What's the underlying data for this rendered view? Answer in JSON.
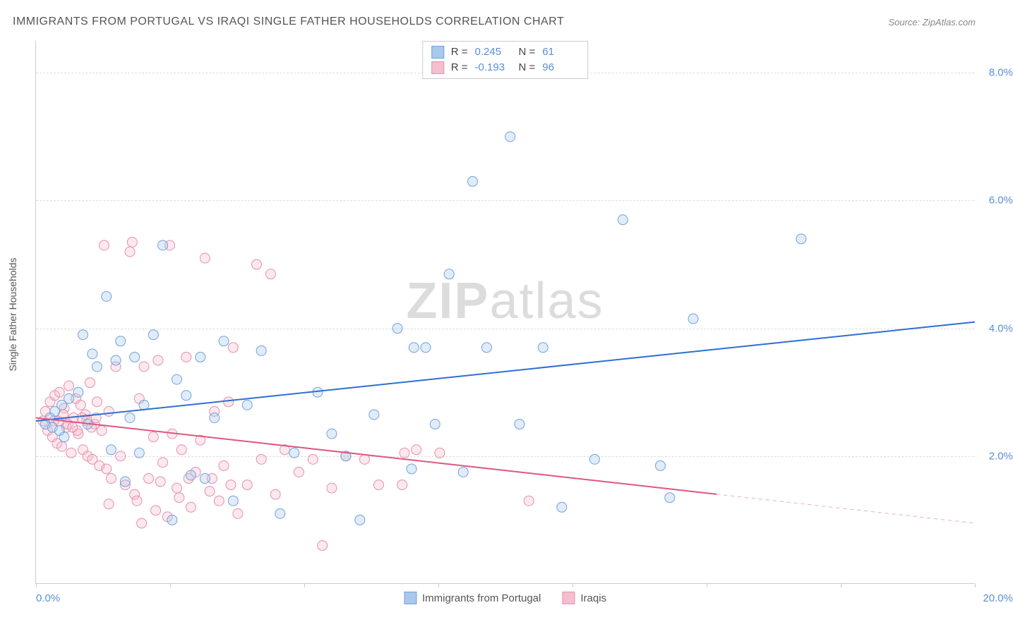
{
  "title": "IMMIGRANTS FROM PORTUGAL VS IRAQI SINGLE FATHER HOUSEHOLDS CORRELATION CHART",
  "source": "Source: ZipAtlas.com",
  "watermark_a": "ZIP",
  "watermark_b": "atlas",
  "ylabel": "Single Father Households",
  "chart": {
    "type": "scatter",
    "xlim": [
      0,
      20
    ],
    "ylim": [
      0,
      8.5
    ],
    "x_ticks_labels": {
      "0": "0.0%",
      "20": "20.0%"
    },
    "x_tick_positions": [
      0,
      2.86,
      5.71,
      8.57,
      11.43,
      14.29,
      17.14,
      20
    ],
    "y_ticks": [
      2,
      4,
      6,
      8
    ],
    "y_tick_labels": [
      "2.0%",
      "4.0%",
      "6.0%",
      "8.0%"
    ],
    "background_color": "#ffffff",
    "grid_color": "#dddddd",
    "axis_color": "#cccccc",
    "tick_label_color": "#5a8fd6",
    "text_color": "#555555",
    "marker_radius": 7,
    "marker_stroke_width": 1,
    "marker_fill_opacity": 0.35,
    "line_width": 2
  },
  "series": [
    {
      "name": "Immigrants from Portugal",
      "color_fill": "#a9c8ec",
      "color_stroke": "#6fa3dd",
      "line_color": "#2e6fd1",
      "R_label": "R =",
      "R": "0.245",
      "N_label": "N =",
      "N": "61",
      "trend": {
        "x1": 0,
        "y1": 2.55,
        "x2": 20,
        "y2": 4.1,
        "solid_until_x": 20
      },
      "points": [
        [
          0.2,
          2.5
        ],
        [
          0.3,
          2.6
        ],
        [
          0.35,
          2.45
        ],
        [
          0.4,
          2.7
        ],
        [
          0.5,
          2.4
        ],
        [
          0.55,
          2.8
        ],
        [
          0.6,
          2.3
        ],
        [
          0.7,
          2.9
        ],
        [
          0.9,
          3.0
        ],
        [
          1.0,
          3.9
        ],
        [
          1.1,
          2.5
        ],
        [
          1.2,
          3.6
        ],
        [
          1.3,
          3.4
        ],
        [
          1.5,
          4.5
        ],
        [
          1.6,
          2.1
        ],
        [
          1.7,
          3.5
        ],
        [
          1.8,
          3.8
        ],
        [
          1.9,
          1.6
        ],
        [
          2.0,
          2.6
        ],
        [
          2.1,
          3.55
        ],
        [
          2.2,
          2.05
        ],
        [
          2.3,
          2.8
        ],
        [
          2.5,
          3.9
        ],
        [
          2.7,
          5.3
        ],
        [
          2.9,
          1.0
        ],
        [
          3.0,
          3.2
        ],
        [
          3.2,
          2.95
        ],
        [
          3.3,
          1.7
        ],
        [
          3.5,
          3.55
        ],
        [
          3.6,
          1.65
        ],
        [
          3.8,
          2.6
        ],
        [
          4.0,
          3.8
        ],
        [
          4.2,
          1.3
        ],
        [
          4.5,
          2.8
        ],
        [
          4.8,
          3.65
        ],
        [
          5.2,
          1.1
        ],
        [
          5.5,
          2.05
        ],
        [
          6.0,
          3.0
        ],
        [
          6.3,
          2.35
        ],
        [
          6.9,
          1.0
        ],
        [
          7.2,
          2.65
        ],
        [
          7.7,
          4.0
        ],
        [
          8.0,
          1.8
        ],
        [
          8.3,
          3.7
        ],
        [
          8.5,
          2.5
        ],
        [
          8.8,
          4.85
        ],
        [
          9.1,
          1.75
        ],
        [
          9.3,
          6.3
        ],
        [
          9.6,
          3.7
        ],
        [
          10.1,
          7.0
        ],
        [
          10.3,
          2.5
        ],
        [
          10.8,
          3.7
        ],
        [
          11.2,
          1.2
        ],
        [
          11.9,
          1.95
        ],
        [
          12.5,
          5.7
        ],
        [
          13.3,
          1.85
        ],
        [
          13.5,
          1.35
        ],
        [
          14.0,
          4.15
        ],
        [
          16.3,
          5.4
        ],
        [
          8.05,
          3.7
        ],
        [
          6.6,
          2.0
        ]
      ]
    },
    {
      "name": "Iraqis",
      "color_fill": "#f4bfcf",
      "color_stroke": "#e88fab",
      "line_color": "#e0567f",
      "R_label": "R =",
      "R": "-0.193",
      "N_label": "N =",
      "N": "96",
      "trend": {
        "x1": 0,
        "y1": 2.6,
        "x2": 20,
        "y2": 0.95,
        "solid_until_x": 14.5
      },
      "points": [
        [
          0.15,
          2.55
        ],
        [
          0.2,
          2.7
        ],
        [
          0.25,
          2.4
        ],
        [
          0.3,
          2.85
        ],
        [
          0.35,
          2.3
        ],
        [
          0.4,
          2.95
        ],
        [
          0.45,
          2.2
        ],
        [
          0.5,
          3.0
        ],
        [
          0.55,
          2.15
        ],
        [
          0.6,
          2.75
        ],
        [
          0.65,
          2.45
        ],
        [
          0.7,
          3.1
        ],
        [
          0.75,
          2.05
        ],
        [
          0.8,
          2.6
        ],
        [
          0.85,
          2.9
        ],
        [
          0.9,
          2.35
        ],
        [
          0.95,
          2.8
        ],
        [
          1.0,
          2.1
        ],
        [
          1.05,
          2.65
        ],
        [
          1.1,
          2.0
        ],
        [
          1.15,
          3.15
        ],
        [
          1.2,
          1.95
        ],
        [
          1.25,
          2.5
        ],
        [
          1.3,
          2.85
        ],
        [
          1.35,
          1.85
        ],
        [
          1.4,
          2.4
        ],
        [
          1.45,
          5.3
        ],
        [
          1.5,
          1.8
        ],
        [
          1.55,
          2.7
        ],
        [
          1.6,
          1.65
        ],
        [
          1.7,
          3.4
        ],
        [
          1.8,
          2.0
        ],
        [
          1.9,
          1.55
        ],
        [
          2.0,
          5.2
        ],
        [
          2.1,
          1.4
        ],
        [
          2.2,
          2.9
        ],
        [
          2.25,
          0.95
        ],
        [
          2.3,
          3.4
        ],
        [
          2.4,
          1.65
        ],
        [
          2.5,
          2.3
        ],
        [
          2.55,
          1.15
        ],
        [
          2.6,
          3.5
        ],
        [
          2.7,
          1.9
        ],
        [
          2.8,
          1.05
        ],
        [
          2.85,
          5.3
        ],
        [
          2.9,
          2.35
        ],
        [
          3.0,
          1.5
        ],
        [
          3.1,
          2.1
        ],
        [
          3.2,
          3.55
        ],
        [
          3.3,
          1.2
        ],
        [
          3.4,
          1.75
        ],
        [
          3.5,
          2.25
        ],
        [
          3.6,
          5.1
        ],
        [
          3.7,
          1.45
        ],
        [
          3.8,
          2.7
        ],
        [
          3.9,
          1.3
        ],
        [
          4.0,
          1.85
        ],
        [
          4.1,
          2.85
        ],
        [
          4.2,
          3.7
        ],
        [
          4.3,
          1.1
        ],
        [
          4.5,
          1.55
        ],
        [
          4.7,
          5.0
        ],
        [
          4.8,
          1.95
        ],
        [
          5.0,
          4.85
        ],
        [
          5.1,
          1.4
        ],
        [
          5.3,
          2.1
        ],
        [
          5.6,
          1.75
        ],
        [
          5.9,
          1.95
        ],
        [
          6.1,
          0.6
        ],
        [
          6.3,
          1.5
        ],
        [
          6.6,
          2.0
        ],
        [
          7.0,
          1.95
        ],
        [
          7.3,
          1.55
        ],
        [
          7.8,
          1.55
        ],
        [
          7.85,
          2.05
        ],
        [
          8.1,
          2.1
        ],
        [
          8.6,
          2.05
        ],
        [
          10.5,
          1.3
        ],
        [
          2.05,
          5.35
        ],
        [
          1.55,
          1.25
        ],
        [
          2.15,
          1.3
        ],
        [
          2.65,
          1.6
        ],
        [
          3.05,
          1.35
        ],
        [
          3.25,
          1.65
        ],
        [
          3.75,
          1.65
        ],
        [
          4.15,
          1.55
        ],
        [
          0.48,
          2.55
        ],
        [
          0.68,
          2.5
        ],
        [
          0.88,
          2.4
        ],
        [
          1.08,
          2.55
        ],
        [
          1.28,
          2.6
        ],
        [
          0.38,
          2.55
        ],
        [
          0.58,
          2.65
        ],
        [
          0.78,
          2.45
        ],
        [
          0.98,
          2.6
        ],
        [
          1.18,
          2.45
        ]
      ]
    }
  ]
}
